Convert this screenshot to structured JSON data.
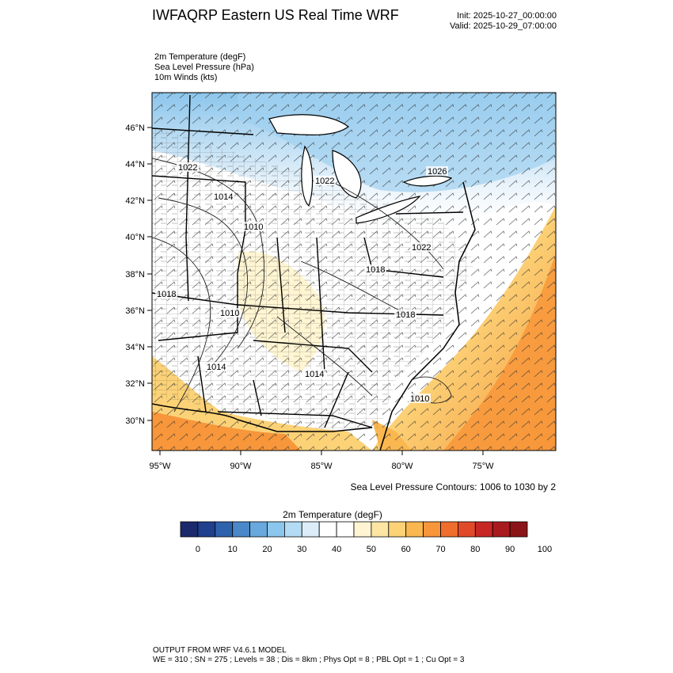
{
  "header": {
    "title": "IWFAQRP Eastern US Real Time WRF",
    "init": "Init: 2025-10-27_00:00:00",
    "valid": "Valid: 2025-10-29_07:00:00"
  },
  "fields": [
    "2m Temperature   (degF)",
    "Sea Level Pressure   (hPa)",
    "10m Winds   (kts)"
  ],
  "map": {
    "lat_ticks": [
      "46°N",
      "44°N",
      "42°N",
      "40°N",
      "38°N",
      "36°N",
      "34°N",
      "32°N",
      "30°N"
    ],
    "lon_ticks": [
      "95°W",
      "90°W",
      "85°W",
      "80°W",
      "75°W"
    ],
    "pressure_labels": [
      "1022",
      "1014",
      "1010",
      "1018",
      "1010",
      "1014",
      "1014",
      "1022",
      "1026",
      "1022",
      "1018",
      "1018",
      "1010"
    ]
  },
  "contour_note": "Sea Level Pressure Contours: 1006 to 1030 by 2",
  "colorbar": {
    "title": "2m Temperature  (degF)",
    "colors": [
      "#1b2a6b",
      "#203f8d",
      "#2f62ad",
      "#4a88c9",
      "#68a8dc",
      "#8cc6ec",
      "#b3dcf4",
      "#dcedf9",
      "#ffffff",
      "#ffffff",
      "#fff5d2",
      "#fde6a4",
      "#fcd277",
      "#fab74f",
      "#f7963a",
      "#ef6e2e",
      "#e04a2a",
      "#c72724",
      "#a81a1e",
      "#8b1418"
    ],
    "tick_labels": [
      "0",
      "10",
      "20",
      "30",
      "40",
      "50",
      "60",
      "70",
      "80",
      "90",
      "100"
    ]
  },
  "footer": {
    "line1": "OUTPUT FROM WRF V4.6.1 MODEL",
    "line2": "WE = 310 ; SN = 275 ; Levels = 38 ; Dis = 8km ; Phys Opt = 8 ; PBL Opt = 1 ; Cu Opt = 3"
  }
}
